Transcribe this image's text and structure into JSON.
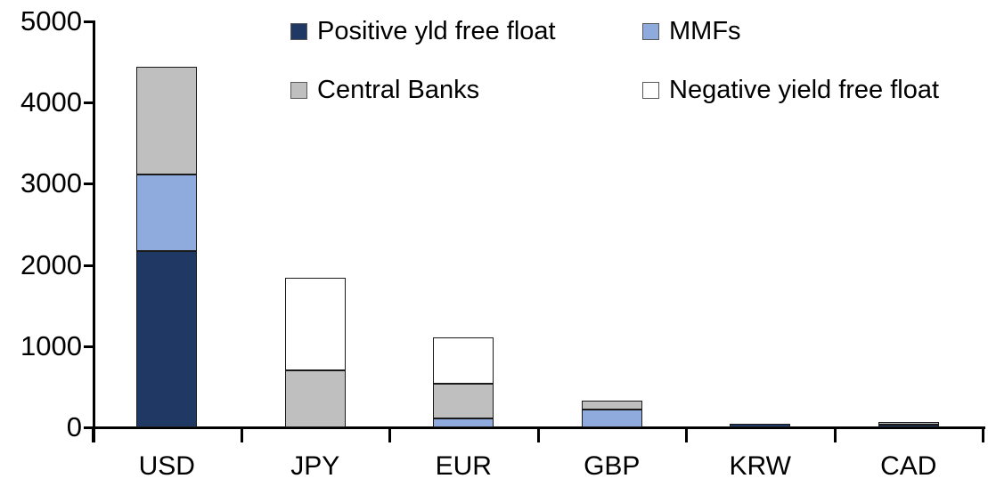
{
  "chart_data": {
    "type": "bar",
    "stacked": true,
    "title": "",
    "xlabel": "",
    "ylabel": "",
    "categories": [
      "USD",
      "JPY",
      "EUR",
      "GBP",
      "KRW",
      "CAD"
    ],
    "series": [
      {
        "name": "Positive yld free float",
        "color": "#1F3864",
        "values": [
          2170,
          0,
          0,
          0,
          40,
          35
        ]
      },
      {
        "name": "MMFs",
        "color": "#8FAADC",
        "values": [
          940,
          0,
          110,
          220,
          0,
          0
        ]
      },
      {
        "name": "Central Banks",
        "color": "#BFBFBF",
        "values": [
          1330,
          700,
          430,
          110,
          0,
          30
        ]
      },
      {
        "name": "Negative yield free float",
        "color": "#FFFFFF",
        "values": [
          0,
          1140,
          570,
          0,
          0,
          0
        ]
      }
    ],
    "totals": {
      "USD": 4440,
      "JPY": 1840,
      "EUR": 1110,
      "GBP": 330,
      "KRW": 40,
      "CAD": 65
    },
    "ylim": [
      0,
      5000
    ],
    "yticks": [
      0,
      1000,
      2000,
      3000,
      4000,
      5000
    ],
    "grid": false,
    "legend_position": "top",
    "axis_color": "#000000",
    "bar_border_color": "#1A1A1A"
  }
}
